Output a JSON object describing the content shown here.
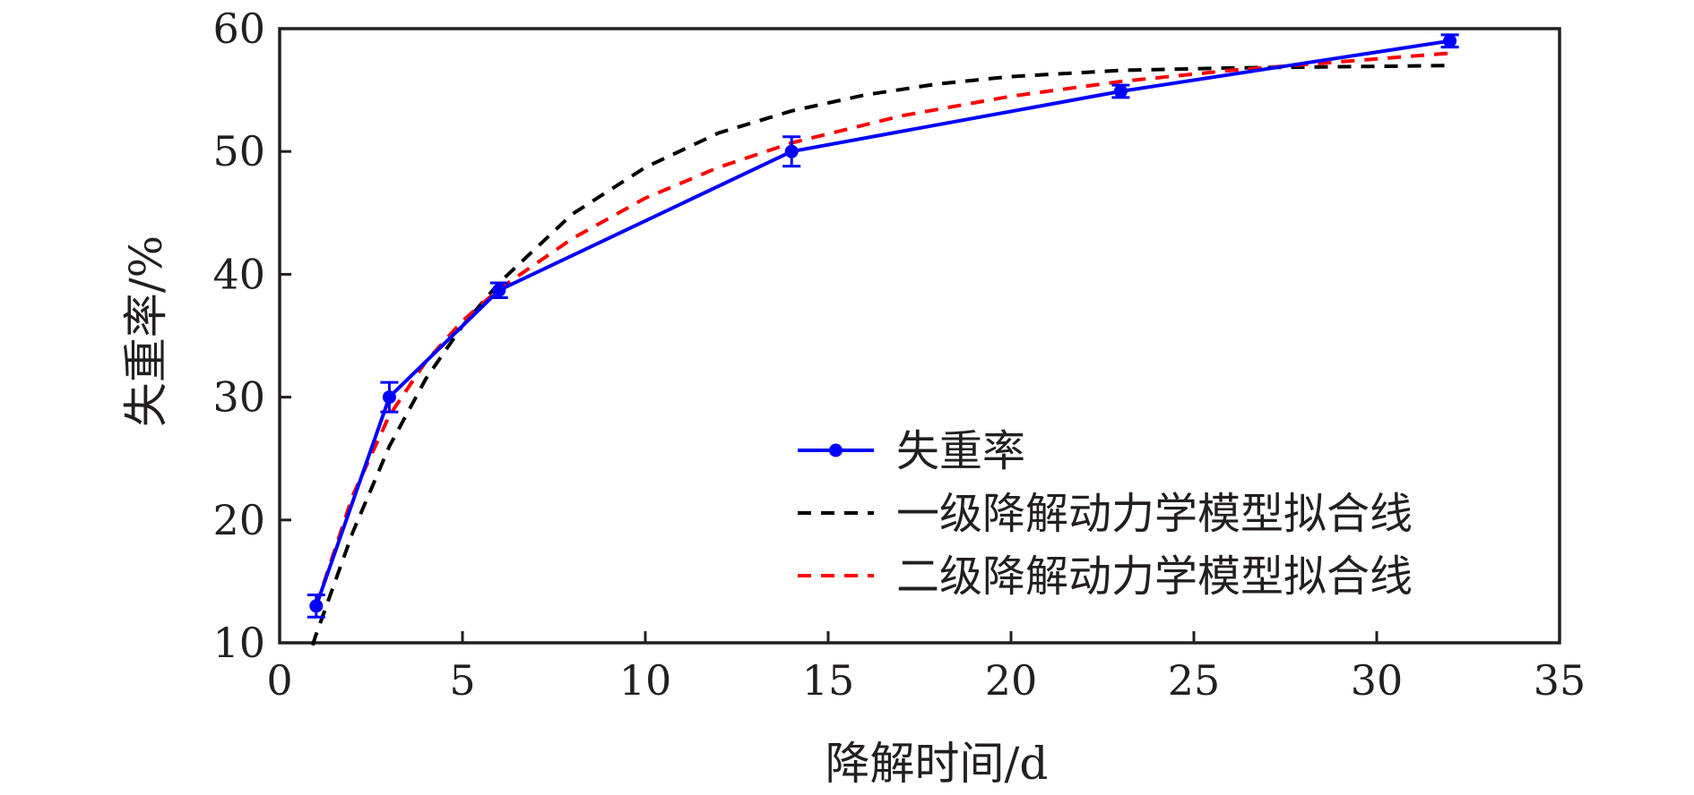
{
  "chart_data": {
    "type": "line",
    "title": "",
    "xlabel": "降解时间/d",
    "ylabel": "失重率/%",
    "xlim": [
      0,
      35
    ],
    "ylim": [
      10,
      60
    ],
    "xticks": [
      0,
      5,
      10,
      15,
      20,
      25,
      30,
      35
    ],
    "yticks": [
      10,
      20,
      30,
      40,
      50,
      60
    ],
    "grid": false,
    "legend_position": "bottom-right",
    "series": [
      {
        "name": "失重率",
        "style": "solid-line-with-markers",
        "color": "#0000ff",
        "x": [
          1,
          3,
          6,
          14,
          23,
          32
        ],
        "y": [
          13.0,
          30.0,
          38.7,
          50.0,
          54.9,
          59.0
        ],
        "error": [
          0.9,
          1.2,
          0.6,
          1.2,
          0.5,
          0.5
        ]
      },
      {
        "name": "一级降解动力学模型拟合线",
        "style": "dashed",
        "color": "#000000",
        "x": [
          0.9,
          1,
          2,
          3,
          4,
          5,
          6,
          8,
          10,
          12,
          14,
          16,
          18,
          20,
          23,
          26,
          29,
          32
        ],
        "y": [
          9.8,
          10.7,
          19.0,
          26.0,
          31.5,
          35.8,
          39.3,
          44.9,
          48.7,
          51.5,
          53.3,
          54.6,
          55.5,
          56.1,
          56.6,
          56.8,
          56.9,
          57.0
        ]
      },
      {
        "name": "二级降解动力学模型拟合线",
        "style": "dashed",
        "color": "#ff0000",
        "x": [
          1,
          2,
          3,
          4,
          5,
          6,
          8,
          10,
          12,
          14,
          17,
          20,
          23,
          26,
          29,
          32
        ],
        "y": [
          13.0,
          22.0,
          28.5,
          32.9,
          36.2,
          38.8,
          42.9,
          46.2,
          48.7,
          50.7,
          52.9,
          54.5,
          55.7,
          56.6,
          57.3,
          58.0
        ]
      }
    ]
  }
}
